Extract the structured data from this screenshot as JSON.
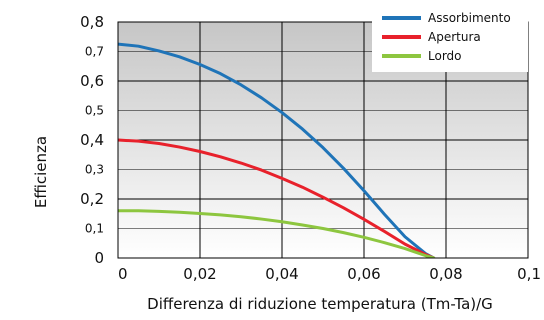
{
  "chart_data": {
    "type": "line",
    "title": "",
    "xlabel": "Differenza di riduzione temperatura (Tm-Ta)/G",
    "ylabel": "Efficienza",
    "xlim": [
      0,
      0.1
    ],
    "ylim": [
      0,
      0.8
    ],
    "x_ticks": [
      "0",
      "0,02",
      "0,04",
      "0,06",
      "0,08",
      "0,1"
    ],
    "y_ticks": [
      {
        "label": "0",
        "major": true
      },
      {
        "label": "0,1",
        "major": false
      },
      {
        "label": "0,2",
        "major": true
      },
      {
        "label": "0,3",
        "major": false
      },
      {
        "label": "0,4",
        "major": true
      },
      {
        "label": "0,5",
        "major": false
      },
      {
        "label": "0,6",
        "major": true
      },
      {
        "label": "0,7",
        "major": false
      },
      {
        "label": "0,8",
        "major": true
      }
    ],
    "grid": true,
    "background": "vertical gradient, light grey to white",
    "legend_position": "top-right",
    "series": [
      {
        "name": "Assorbimento",
        "color": "#1f74b8",
        "x": [
          0,
          0.005,
          0.01,
          0.015,
          0.02,
          0.025,
          0.03,
          0.035,
          0.04,
          0.045,
          0.05,
          0.055,
          0.06,
          0.065,
          0.07,
          0.075,
          0.077
        ],
        "y": [
          0.725,
          0.718,
          0.702,
          0.682,
          0.656,
          0.625,
          0.587,
          0.543,
          0.493,
          0.437,
          0.374,
          0.304,
          0.228,
          0.148,
          0.072,
          0.015,
          0
        ]
      },
      {
        "name": "Apertura",
        "color": "#e8212b",
        "x": [
          0,
          0.005,
          0.01,
          0.015,
          0.02,
          0.025,
          0.03,
          0.035,
          0.04,
          0.045,
          0.05,
          0.055,
          0.06,
          0.065,
          0.07,
          0.075,
          0.077
        ],
        "y": [
          0.4,
          0.396,
          0.388,
          0.376,
          0.361,
          0.343,
          0.322,
          0.298,
          0.27,
          0.24,
          0.206,
          0.17,
          0.131,
          0.09,
          0.047,
          0.012,
          0
        ]
      },
      {
        "name": "Lordo",
        "color": "#8dc63f",
        "x": [
          0,
          0.005,
          0.01,
          0.015,
          0.02,
          0.025,
          0.03,
          0.035,
          0.04,
          0.045,
          0.05,
          0.055,
          0.06,
          0.065,
          0.07,
          0.075,
          0.077
        ],
        "y": [
          0.16,
          0.16,
          0.158,
          0.155,
          0.151,
          0.146,
          0.14,
          0.132,
          0.123,
          0.112,
          0.1,
          0.086,
          0.07,
          0.052,
          0.032,
          0.008,
          0
        ]
      }
    ]
  }
}
